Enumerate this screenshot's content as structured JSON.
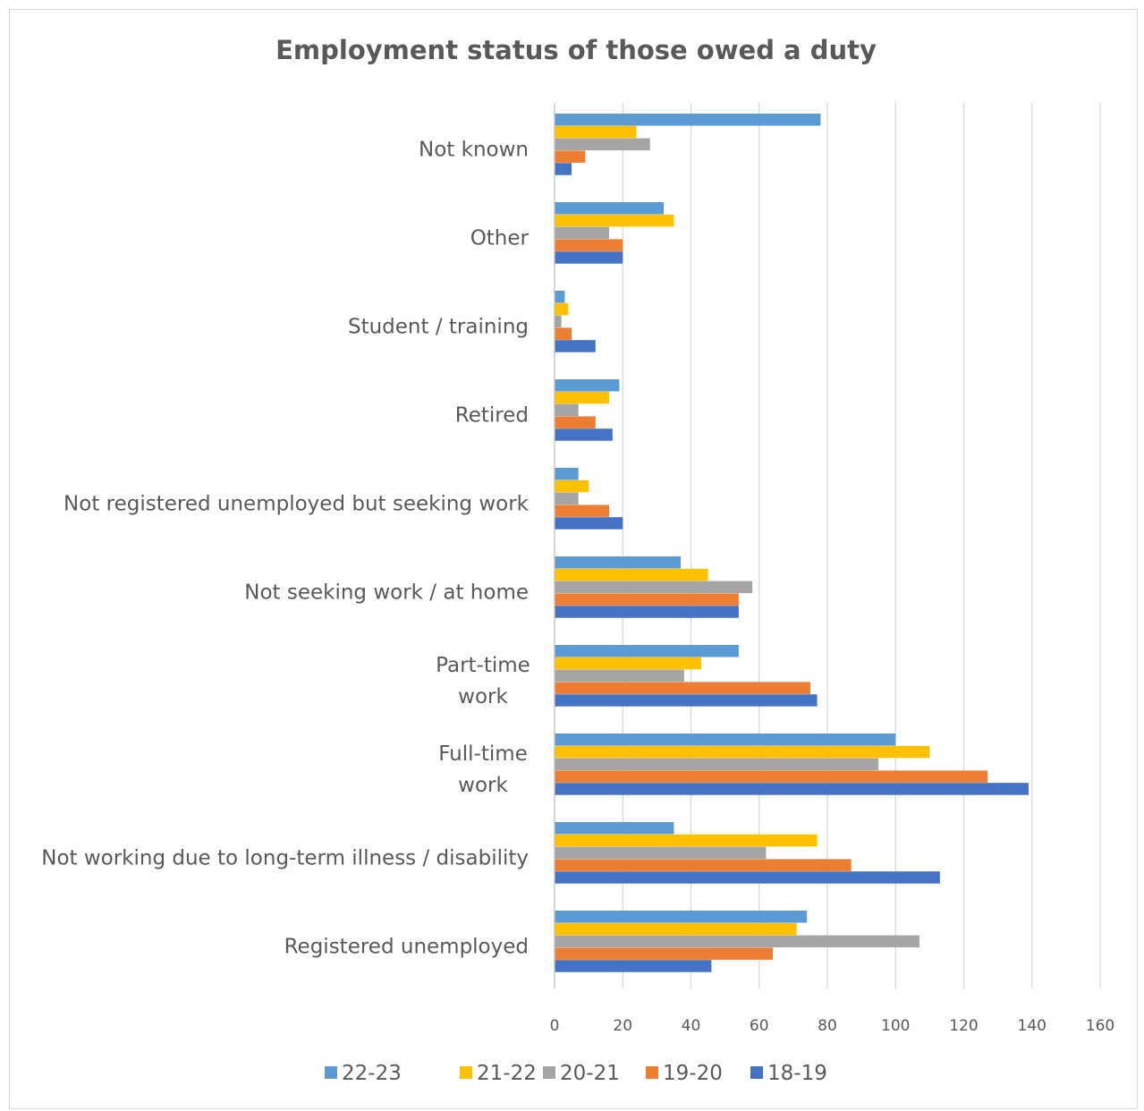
{
  "chart_data": {
    "type": "bar",
    "orientation": "horizontal",
    "title": "Employment status of those owed a duty",
    "xlabel": "",
    "ylabel": "",
    "xlim": [
      0,
      160
    ],
    "x_ticks": [
      0,
      20,
      40,
      60,
      80,
      100,
      120,
      140,
      160
    ],
    "grid": true,
    "legend_position": "bottom",
    "categories": [
      [
        "Not known"
      ],
      [
        "Other"
      ],
      [
        "Student / training"
      ],
      [
        "Retired"
      ],
      [
        "Not registered unemployed but seeking work"
      ],
      [
        "Not seeking work / at home"
      ],
      [
        "Part-time",
        "work"
      ],
      [
        "Full-time",
        "work"
      ],
      [
        "Not working due to long-term illness / disability"
      ],
      [
        "Registered unemployed"
      ]
    ],
    "series": [
      {
        "name": "22-23",
        "color": "#5B9BD5",
        "values": [
          78,
          32,
          3,
          19,
          7,
          37,
          54,
          100,
          35,
          74
        ]
      },
      {
        "name": "21-22",
        "color": "#FFC000",
        "values": [
          24,
          35,
          4,
          16,
          10,
          45,
          43,
          110,
          77,
          71
        ]
      },
      {
        "name": "20-21",
        "color": "#A5A5A5",
        "values": [
          28,
          16,
          2,
          7,
          7,
          58,
          38,
          95,
          62,
          107
        ]
      },
      {
        "name": "19-20",
        "color": "#ED7D31",
        "values": [
          9,
          20,
          5,
          12,
          16,
          54,
          75,
          127,
          87,
          64
        ]
      },
      {
        "name": "18-19",
        "color": "#4472C4",
        "values": [
          5,
          20,
          12,
          17,
          20,
          54,
          77,
          139,
          113,
          46
        ]
      }
    ]
  }
}
